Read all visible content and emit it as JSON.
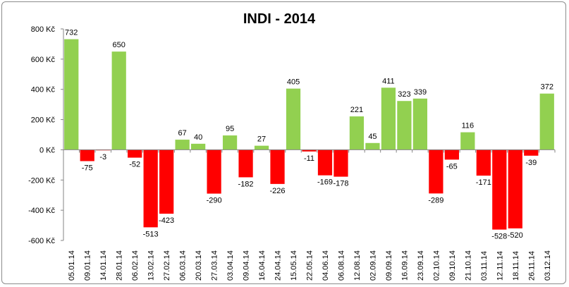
{
  "colors": {
    "positive": "#92D050",
    "negative": "#FF0000"
  },
  "chart_data": {
    "type": "bar",
    "title": "INDI - 2014",
    "xlabel": "",
    "ylabel": "",
    "ylim": [
      -600,
      800
    ],
    "yticks": [
      {
        "value": 800,
        "label": "800 Kč"
      },
      {
        "value": 600,
        "label": "600 Kč"
      },
      {
        "value": 400,
        "label": "400 Kč"
      },
      {
        "value": 200,
        "label": "200 Kč"
      },
      {
        "value": 0,
        "label": "0 Kč"
      },
      {
        "value": -200,
        "label": "-200 Kč"
      },
      {
        "value": -400,
        "label": "-400 Kč"
      },
      {
        "value": -600,
        "label": "-600 Kč"
      }
    ],
    "grid": false,
    "legend": "none",
    "categories": [
      "05.01.14",
      "09.01.14",
      "14.01.14",
      "28.01.14",
      "06.02.14",
      "13.02.14",
      "27.02.14",
      "06.03.14",
      "20.03.14",
      "27.03.14",
      "03.04.14",
      "09.04.14",
      "16.04.14",
      "24.04.14",
      "15.05.14",
      "22.05.14",
      "04.06.14",
      "06.08.14",
      "12.08.14",
      "02.09.14",
      "09.09.14",
      "16.09.14",
      "23.09.14",
      "02.10.14",
      "09.10.14",
      "21.10.14",
      "03.11.14",
      "12.11.14",
      "18.11.14",
      "26.11.14",
      "03.12.14"
    ],
    "values": [
      732,
      -75,
      -3,
      650,
      -52,
      -513,
      -423,
      67,
      40,
      -290,
      95,
      -182,
      27,
      -226,
      405,
      -11,
      -169,
      -178,
      221,
      45,
      411,
      323,
      339,
      -289,
      -65,
      116,
      -171,
      -528,
      -520,
      -39,
      372
    ]
  }
}
